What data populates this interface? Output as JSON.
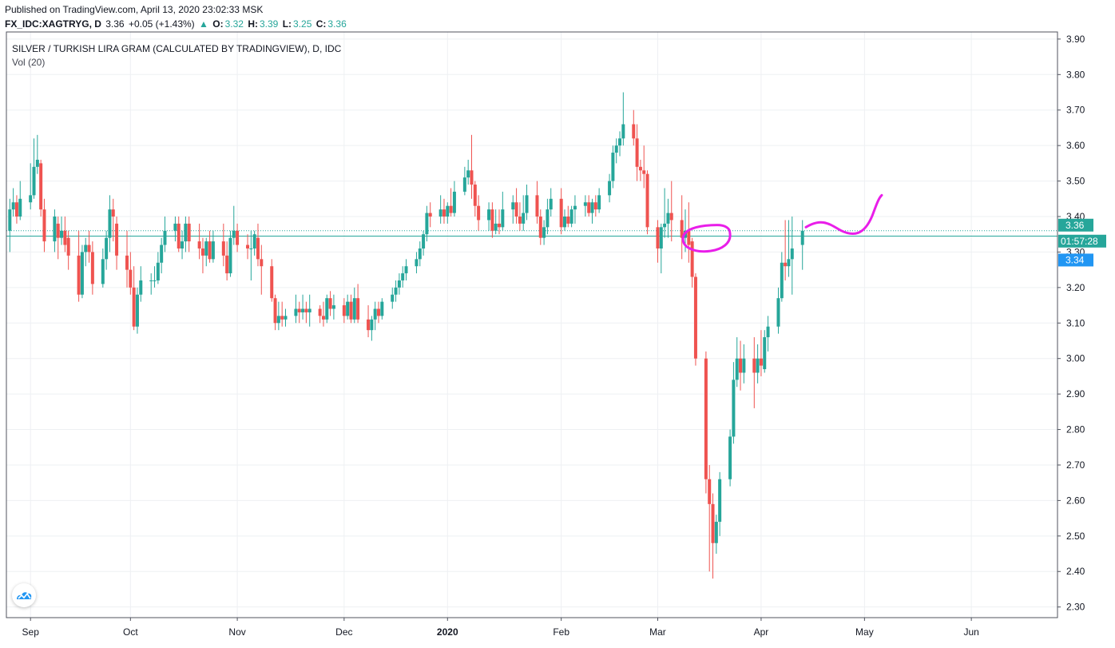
{
  "header": {
    "published": "Published on TradingView.com, April 13, 2020 23:02:33 MSK",
    "symbol": "FX_IDC:XAGTRYG, D",
    "last": "3.36",
    "change": "+0.05 (+1.43%)",
    "o_label": "O:",
    "o": "3.32",
    "h_label": "H:",
    "h": "3.39",
    "l_label": "L:",
    "l": "3.25",
    "c_label": "C:",
    "c": "3.36",
    "up_arrow": "▲"
  },
  "legend": {
    "title": "SILVER / TURKISH LIRA GRAM (CALCULATED BY TRADINGVIEW), D, IDC",
    "volume": "Vol (20)"
  },
  "price_tags": {
    "last": "3.36",
    "countdown": "01:57:28",
    "bid": "3.34"
  },
  "colors": {
    "up": "#26a69a",
    "down": "#ef5350",
    "annotation": "#e91ee9",
    "grid": "#eef0f3",
    "bid": "#2196f3"
  },
  "logo_icon": "tradingview-cloud-icon",
  "chart_data": {
    "type": "candlestick",
    "ylim": [
      2.27,
      3.92
    ],
    "y_ticks": [
      3.9,
      3.8,
      3.7,
      3.6,
      3.5,
      3.4,
      3.3,
      3.2,
      3.1,
      3.0,
      2.9,
      2.8,
      2.7,
      2.6,
      2.5,
      2.4,
      2.3
    ],
    "x_ticks": [
      {
        "label": "Sep",
        "date": "2019-09-02"
      },
      {
        "label": "Oct",
        "date": "2019-10-01"
      },
      {
        "label": "Nov",
        "date": "2019-11-01"
      },
      {
        "label": "Dec",
        "date": "2019-12-02"
      },
      {
        "label": "2020",
        "date": "2020-01-01"
      },
      {
        "label": "Feb",
        "date": "2020-02-03"
      },
      {
        "label": "Mar",
        "date": "2020-03-02"
      },
      {
        "label": "Apr",
        "date": "2020-04-01"
      },
      {
        "label": "May",
        "date": "2020-05-01"
      },
      {
        "label": "Jun",
        "date": "2020-06-01"
      }
    ],
    "x_range": [
      "2019-08-26",
      "2020-06-26"
    ],
    "horizontal_lines": [
      3.36,
      3.345
    ],
    "ohlc": [
      [
        "2019-08-27",
        3.36,
        3.45,
        3.3,
        3.42
      ],
      [
        "2019-08-28",
        3.42,
        3.48,
        3.4,
        3.44
      ],
      [
        "2019-08-29",
        3.44,
        3.46,
        3.38,
        3.4
      ],
      [
        "2019-08-30",
        3.4,
        3.5,
        3.39,
        3.45
      ],
      [
        "2019-09-02",
        3.44,
        3.55,
        3.42,
        3.46
      ],
      [
        "2019-09-03",
        3.46,
        3.62,
        3.45,
        3.54
      ],
      [
        "2019-09-04",
        3.54,
        3.63,
        3.52,
        3.56
      ],
      [
        "2019-09-05",
        3.55,
        3.56,
        3.4,
        3.42
      ],
      [
        "2019-09-06",
        3.42,
        3.45,
        3.3,
        3.33
      ],
      [
        "2019-09-09",
        3.33,
        3.42,
        3.3,
        3.4
      ],
      [
        "2019-09-10",
        3.38,
        3.4,
        3.28,
        3.34
      ],
      [
        "2019-09-11",
        3.34,
        3.4,
        3.32,
        3.36
      ],
      [
        "2019-09-12",
        3.36,
        3.4,
        3.3,
        3.32
      ],
      [
        "2019-09-13",
        3.34,
        3.36,
        3.25,
        3.29
      ],
      [
        "2019-09-16",
        3.29,
        3.36,
        3.16,
        3.18
      ],
      [
        "2019-09-17",
        3.18,
        3.32,
        3.17,
        3.3
      ],
      [
        "2019-09-18",
        3.3,
        3.34,
        3.26,
        3.32
      ],
      [
        "2019-09-19",
        3.32,
        3.36,
        3.27,
        3.3
      ],
      [
        "2019-09-20",
        3.3,
        3.33,
        3.18,
        3.21
      ],
      [
        "2019-09-23",
        3.21,
        3.31,
        3.2,
        3.28
      ],
      [
        "2019-09-24",
        3.28,
        3.36,
        3.25,
        3.34
      ],
      [
        "2019-09-25",
        3.34,
        3.46,
        3.3,
        3.42
      ],
      [
        "2019-09-26",
        3.42,
        3.45,
        3.33,
        3.4
      ],
      [
        "2019-09-27",
        3.38,
        3.4,
        3.25,
        3.29
      ],
      [
        "2019-09-30",
        3.29,
        3.36,
        3.2,
        3.25
      ],
      [
        "2019-10-01",
        3.25,
        3.3,
        3.18,
        3.2
      ],
      [
        "2019-10-02",
        3.2,
        3.26,
        3.08,
        3.09
      ],
      [
        "2019-10-03",
        3.09,
        3.2,
        3.07,
        3.18
      ],
      [
        "2019-10-04",
        3.18,
        3.26,
        3.16,
        3.22
      ],
      [
        "2019-10-07",
        3.22,
        3.24,
        3.18,
        3.22
      ],
      [
        "2019-10-08",
        3.22,
        3.26,
        3.2,
        3.22
      ],
      [
        "2019-10-09",
        3.22,
        3.3,
        3.21,
        3.27
      ],
      [
        "2019-10-10",
        3.27,
        3.34,
        3.24,
        3.32
      ],
      [
        "2019-10-11",
        3.32,
        3.4,
        3.3,
        3.36
      ],
      [
        "2019-10-14",
        3.36,
        3.4,
        3.33,
        3.38
      ],
      [
        "2019-10-15",
        3.38,
        3.4,
        3.3,
        3.31
      ],
      [
        "2019-10-16",
        3.31,
        3.36,
        3.28,
        3.33
      ],
      [
        "2019-10-17",
        3.33,
        3.4,
        3.3,
        3.38
      ],
      [
        "2019-10-18",
        3.38,
        3.4,
        3.3,
        3.33
      ],
      [
        "2019-10-21",
        3.33,
        3.38,
        3.28,
        3.31
      ],
      [
        "2019-10-22",
        3.31,
        3.34,
        3.24,
        3.29
      ],
      [
        "2019-10-23",
        3.29,
        3.34,
        3.26,
        3.33
      ],
      [
        "2019-10-24",
        3.33,
        3.36,
        3.27,
        3.28
      ],
      [
        "2019-10-25",
        3.28,
        3.36,
        3.27,
        3.33
      ],
      [
        "2019-10-28",
        3.33,
        3.38,
        3.26,
        3.29
      ],
      [
        "2019-10-29",
        3.29,
        3.33,
        3.22,
        3.24
      ],
      [
        "2019-10-30",
        3.24,
        3.36,
        3.23,
        3.34
      ],
      [
        "2019-10-31",
        3.34,
        3.43,
        3.32,
        3.36
      ],
      [
        "2019-11-01",
        3.36,
        3.38,
        3.3,
        3.32
      ],
      [
        "2019-11-04",
        3.32,
        3.35,
        3.28,
        3.31
      ],
      [
        "2019-11-05",
        3.31,
        3.36,
        3.22,
        3.31
      ],
      [
        "2019-11-06",
        3.31,
        3.36,
        3.29,
        3.35
      ],
      [
        "2019-11-07",
        3.34,
        3.38,
        3.26,
        3.28
      ],
      [
        "2019-11-08",
        3.28,
        3.32,
        3.18,
        3.26
      ],
      [
        "2019-11-11",
        3.26,
        3.28,
        3.16,
        3.17
      ],
      [
        "2019-11-12",
        3.17,
        3.18,
        3.08,
        3.1
      ],
      [
        "2019-11-13",
        3.1,
        3.16,
        3.08,
        3.12
      ],
      [
        "2019-11-14",
        3.12,
        3.16,
        3.09,
        3.11
      ],
      [
        "2019-11-15",
        3.11,
        3.14,
        3.09,
        3.12
      ],
      [
        "2019-11-18",
        3.12,
        3.18,
        3.1,
        3.14
      ],
      [
        "2019-11-19",
        3.14,
        3.16,
        3.1,
        3.13
      ],
      [
        "2019-11-20",
        3.13,
        3.18,
        3.11,
        3.14
      ],
      [
        "2019-11-21",
        3.14,
        3.16,
        3.1,
        3.13
      ],
      [
        "2019-11-22",
        3.13,
        3.18,
        3.09,
        3.14
      ],
      [
        "2019-11-25",
        3.14,
        3.15,
        3.1,
        3.12
      ],
      [
        "2019-11-26",
        3.12,
        3.16,
        3.09,
        3.11
      ],
      [
        "2019-11-27",
        3.11,
        3.18,
        3.1,
        3.17
      ],
      [
        "2019-11-28",
        3.17,
        3.19,
        3.12,
        3.14
      ],
      [
        "2019-11-29",
        3.14,
        3.18,
        3.11,
        3.15
      ],
      [
        "2019-12-02",
        3.15,
        3.17,
        3.1,
        3.12
      ],
      [
        "2019-12-03",
        3.12,
        3.18,
        3.11,
        3.16
      ],
      [
        "2019-12-04",
        3.16,
        3.18,
        3.1,
        3.11
      ],
      [
        "2019-12-05",
        3.11,
        3.2,
        3.1,
        3.17
      ],
      [
        "2019-12-06",
        3.17,
        3.21,
        3.1,
        3.11
      ],
      [
        "2019-12-09",
        3.11,
        3.15,
        3.06,
        3.08
      ],
      [
        "2019-12-10",
        3.08,
        3.12,
        3.05,
        3.11
      ],
      [
        "2019-12-11",
        3.11,
        3.16,
        3.08,
        3.14
      ],
      [
        "2019-12-12",
        3.14,
        3.16,
        3.1,
        3.12
      ],
      [
        "2019-12-13",
        3.12,
        3.17,
        3.11,
        3.16
      ],
      [
        "2019-12-16",
        3.16,
        3.2,
        3.14,
        3.18
      ],
      [
        "2019-12-17",
        3.18,
        3.22,
        3.16,
        3.2
      ],
      [
        "2019-12-18",
        3.2,
        3.24,
        3.18,
        3.22
      ],
      [
        "2019-12-19",
        3.22,
        3.26,
        3.2,
        3.24
      ],
      [
        "2019-12-20",
        3.24,
        3.28,
        3.22,
        3.26
      ],
      [
        "2019-12-23",
        3.26,
        3.3,
        3.24,
        3.28
      ],
      [
        "2019-12-24",
        3.28,
        3.33,
        3.26,
        3.31
      ],
      [
        "2019-12-25",
        3.31,
        3.36,
        3.29,
        3.35
      ],
      [
        "2019-12-26",
        3.35,
        3.43,
        3.33,
        3.41
      ],
      [
        "2019-12-27",
        3.41,
        3.44,
        3.37,
        3.4
      ],
      [
        "2019-12-30",
        3.4,
        3.46,
        3.38,
        3.42
      ],
      [
        "2019-12-31",
        3.42,
        3.45,
        3.38,
        3.4
      ],
      [
        "2020-01-01",
        3.4,
        3.44,
        3.38,
        3.43
      ],
      [
        "2020-01-02",
        3.43,
        3.48,
        3.4,
        3.41
      ],
      [
        "2020-01-03",
        3.41,
        3.5,
        3.4,
        3.47
      ],
      [
        "2020-01-06",
        3.47,
        3.54,
        3.46,
        3.51
      ],
      [
        "2020-01-07",
        3.51,
        3.56,
        3.49,
        3.53
      ],
      [
        "2020-01-08",
        3.53,
        3.63,
        3.45,
        3.49
      ],
      [
        "2020-01-09",
        3.49,
        3.5,
        3.4,
        3.43
      ],
      [
        "2020-01-10",
        3.43,
        3.46,
        3.36,
        3.39
      ],
      [
        "2020-01-13",
        3.39,
        3.44,
        3.36,
        3.42
      ],
      [
        "2020-01-14",
        3.42,
        3.44,
        3.34,
        3.36
      ],
      [
        "2020-01-15",
        3.36,
        3.42,
        3.35,
        3.38
      ],
      [
        "2020-01-16",
        3.38,
        3.42,
        3.35,
        3.37
      ],
      [
        "2020-01-17",
        3.37,
        3.47,
        3.36,
        3.42
      ],
      [
        "2020-01-20",
        3.42,
        3.46,
        3.38,
        3.44
      ],
      [
        "2020-01-21",
        3.44,
        3.48,
        3.38,
        3.4
      ],
      [
        "2020-01-22",
        3.4,
        3.44,
        3.36,
        3.38
      ],
      [
        "2020-01-23",
        3.38,
        3.46,
        3.36,
        3.41
      ],
      [
        "2020-01-24",
        3.41,
        3.49,
        3.39,
        3.46
      ],
      [
        "2020-01-27",
        3.46,
        3.5,
        3.38,
        3.4
      ],
      [
        "2020-01-28",
        3.4,
        3.42,
        3.32,
        3.34
      ],
      [
        "2020-01-29",
        3.34,
        3.39,
        3.32,
        3.37
      ],
      [
        "2020-01-30",
        3.37,
        3.45,
        3.35,
        3.42
      ],
      [
        "2020-01-31",
        3.42,
        3.48,
        3.4,
        3.45
      ],
      [
        "2020-02-03",
        3.45,
        3.48,
        3.35,
        3.37
      ],
      [
        "2020-02-04",
        3.37,
        3.42,
        3.36,
        3.4
      ],
      [
        "2020-02-05",
        3.4,
        3.43,
        3.37,
        3.38
      ],
      [
        "2020-02-06",
        3.38,
        3.43,
        3.37,
        3.42
      ],
      [
        "2020-02-07",
        3.42,
        3.46,
        3.38,
        3.43
      ],
      [
        "2020-02-10",
        3.43,
        3.46,
        3.4,
        3.44
      ],
      [
        "2020-02-11",
        3.44,
        3.46,
        3.4,
        3.41
      ],
      [
        "2020-02-12",
        3.41,
        3.45,
        3.38,
        3.44
      ],
      [
        "2020-02-13",
        3.44,
        3.46,
        3.4,
        3.42
      ],
      [
        "2020-02-14",
        3.42,
        3.48,
        3.41,
        3.46
      ],
      [
        "2020-02-17",
        3.46,
        3.52,
        3.44,
        3.5
      ],
      [
        "2020-02-18",
        3.5,
        3.6,
        3.48,
        3.58
      ],
      [
        "2020-02-19",
        3.58,
        3.62,
        3.55,
        3.6
      ],
      [
        "2020-02-20",
        3.6,
        3.64,
        3.57,
        3.62
      ],
      [
        "2020-02-21",
        3.62,
        3.75,
        3.6,
        3.66
      ],
      [
        "2020-02-24",
        3.66,
        3.7,
        3.6,
        3.62
      ],
      [
        "2020-02-25",
        3.62,
        3.66,
        3.5,
        3.54
      ],
      [
        "2020-02-26",
        3.54,
        3.56,
        3.5,
        3.53
      ],
      [
        "2020-02-27",
        3.53,
        3.6,
        3.48,
        3.52
      ],
      [
        "2020-02-28",
        3.52,
        3.53,
        3.35,
        3.37
      ],
      [
        "2020-03-02",
        3.37,
        3.39,
        3.27,
        3.31
      ],
      [
        "2020-03-03",
        3.31,
        3.38,
        3.24,
        3.37
      ],
      [
        "2020-03-04",
        3.37,
        3.48,
        3.34,
        3.38
      ],
      [
        "2020-03-05",
        3.38,
        3.45,
        3.34,
        3.41
      ],
      [
        "2020-03-06",
        3.41,
        3.5,
        3.33,
        3.39
      ],
      [
        "2020-03-09",
        3.39,
        3.46,
        3.28,
        3.34
      ],
      [
        "2020-03-10",
        3.34,
        3.42,
        3.3,
        3.36
      ],
      [
        "2020-03-11",
        3.36,
        3.44,
        3.27,
        3.32
      ],
      [
        "2020-03-12",
        3.33,
        3.34,
        3.2,
        3.23
      ],
      [
        "2020-03-13",
        3.23,
        3.24,
        2.98,
        3.0
      ],
      [
        "2020-03-16",
        3.0,
        3.02,
        2.62,
        2.66
      ],
      [
        "2020-03-17",
        2.66,
        2.7,
        2.4,
        2.59
      ],
      [
        "2020-03-18",
        2.59,
        2.62,
        2.38,
        2.48
      ],
      [
        "2020-03-19",
        2.48,
        2.56,
        2.45,
        2.54
      ],
      [
        "2020-03-20",
        2.54,
        2.68,
        2.5,
        2.66
      ],
      [
        "2020-03-23",
        2.66,
        2.8,
        2.64,
        2.78
      ],
      [
        "2020-03-24",
        2.78,
        2.99,
        2.76,
        2.94
      ],
      [
        "2020-03-25",
        2.94,
        3.06,
        2.92,
        3.0
      ],
      [
        "2020-03-26",
        3.0,
        3.05,
        2.91,
        2.96
      ],
      [
        "2020-03-27",
        2.96,
        3.04,
        2.93,
        3.0
      ],
      [
        "2020-03-30",
        3.0,
        3.06,
        2.86,
        2.96
      ],
      [
        "2020-03-31",
        2.96,
        3.04,
        2.93,
        3.0
      ],
      [
        "2020-04-01",
        3.0,
        3.08,
        2.95,
        2.98
      ],
      [
        "2020-04-02",
        2.97,
        3.08,
        2.96,
        3.06
      ],
      [
        "2020-04-03",
        3.06,
        3.12,
        3.02,
        3.09
      ],
      [
        "2020-04-06",
        3.09,
        3.2,
        3.07,
        3.17
      ],
      [
        "2020-04-07",
        3.17,
        3.3,
        3.16,
        3.27
      ],
      [
        "2020-04-08",
        3.27,
        3.39,
        3.22,
        3.26
      ],
      [
        "2020-04-09",
        3.26,
        3.39,
        3.23,
        3.28
      ],
      [
        "2020-04-10",
        3.28,
        3.4,
        3.18,
        3.31
      ],
      [
        "2020-04-13",
        3.32,
        3.39,
        3.25,
        3.36
      ]
    ],
    "annotations": [
      {
        "type": "ellipse",
        "center": [
          "2020-03-16",
          3.34
        ],
        "note": "hand-drawn circle"
      },
      {
        "type": "curve",
        "from": [
          "2020-04-14",
          3.37
        ],
        "to": [
          "2020-05-06",
          3.46
        ],
        "note": "hand-drawn projected path"
      }
    ]
  }
}
